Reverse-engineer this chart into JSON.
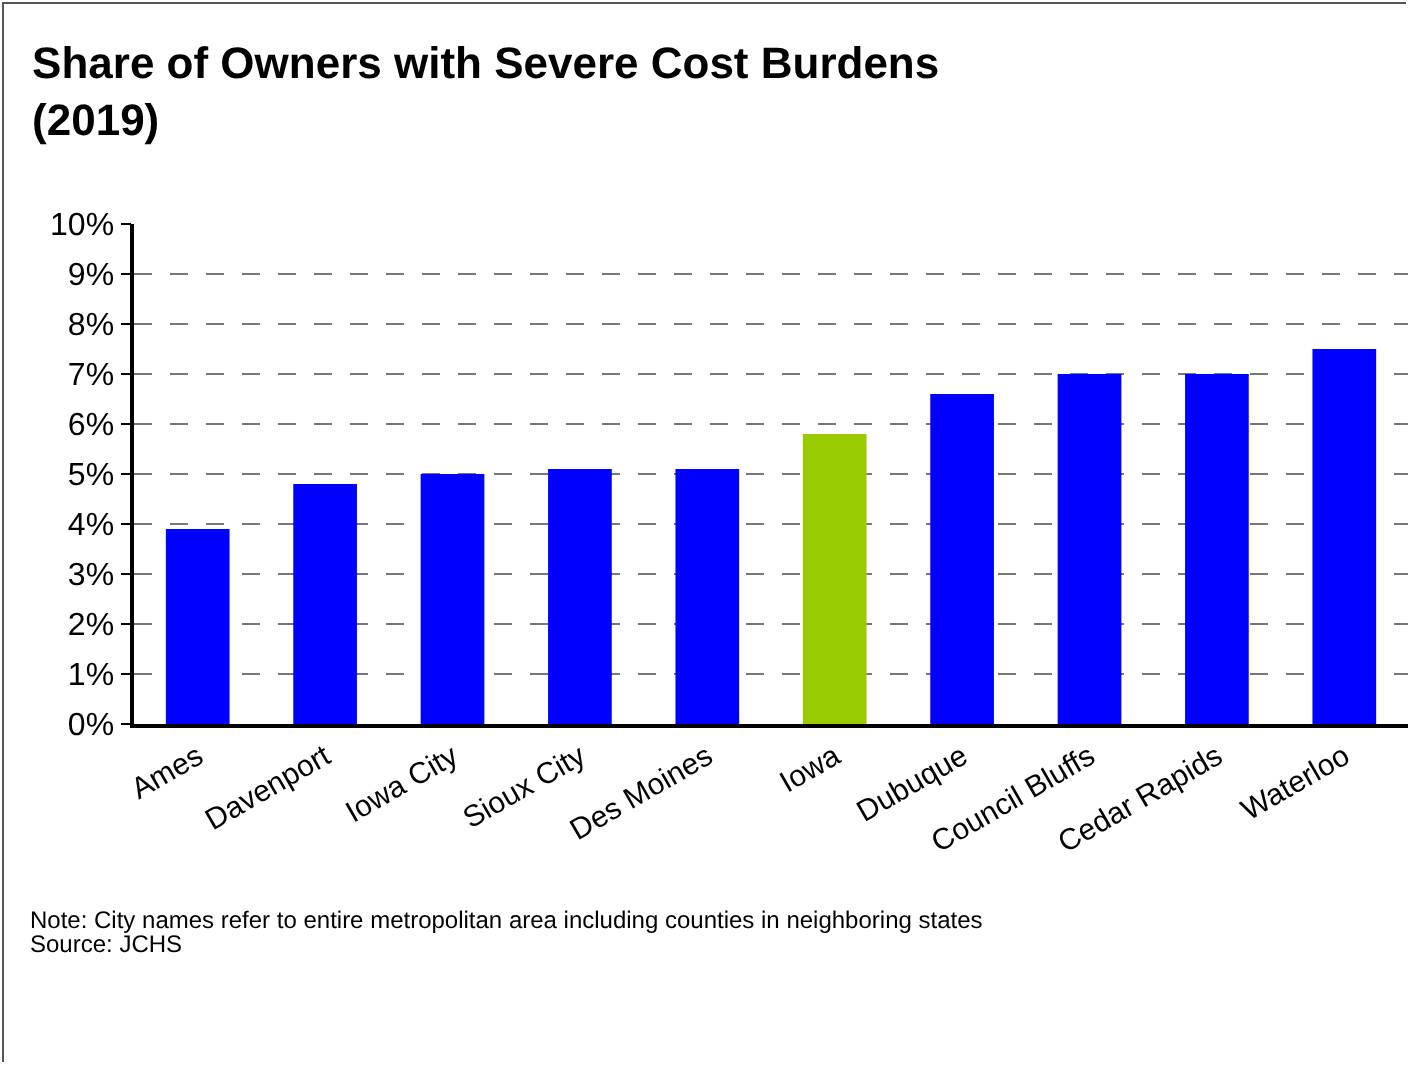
{
  "chart_data": {
    "type": "bar",
    "title": "Share of Owners with Severe Cost Burdens\n(2019)",
    "categories": [
      "Ames",
      "Davenport",
      "Iowa City",
      "Sioux City",
      "Des Moines",
      "Iowa",
      "Dubuque",
      "Council Bluffs",
      "Cedar Rapids",
      "Waterloo"
    ],
    "values": [
      3.9,
      4.8,
      5.0,
      5.1,
      5.1,
      5.8,
      6.6,
      7.0,
      7.0,
      7.5
    ],
    "colors": [
      "#0000ff",
      "#0000ff",
      "#0000ff",
      "#0000ff",
      "#0000ff",
      "#99cc00",
      "#0000ff",
      "#0000ff",
      "#0000ff",
      "#0000ff"
    ],
    "ylim": [
      0,
      10
    ],
    "yticks": [
      {
        "value": 0,
        "label": "0%"
      },
      {
        "value": 1,
        "label": "1%"
      },
      {
        "value": 2,
        "label": "2%"
      },
      {
        "value": 3,
        "label": "3%"
      },
      {
        "value": 4,
        "label": "4%"
      },
      {
        "value": 5,
        "label": "5%"
      },
      {
        "value": 6,
        "label": "6%"
      },
      {
        "value": 7,
        "label": "7%"
      },
      {
        "value": 8,
        "label": "8%"
      },
      {
        "value": 9,
        "label": "9%"
      },
      {
        "value": 10,
        "label": "10%"
      }
    ],
    "grid": "y",
    "annotations": [
      "Note: City names refer to entire metropolitan area including counties in neighboring states",
      "Source: JCHS"
    ]
  }
}
